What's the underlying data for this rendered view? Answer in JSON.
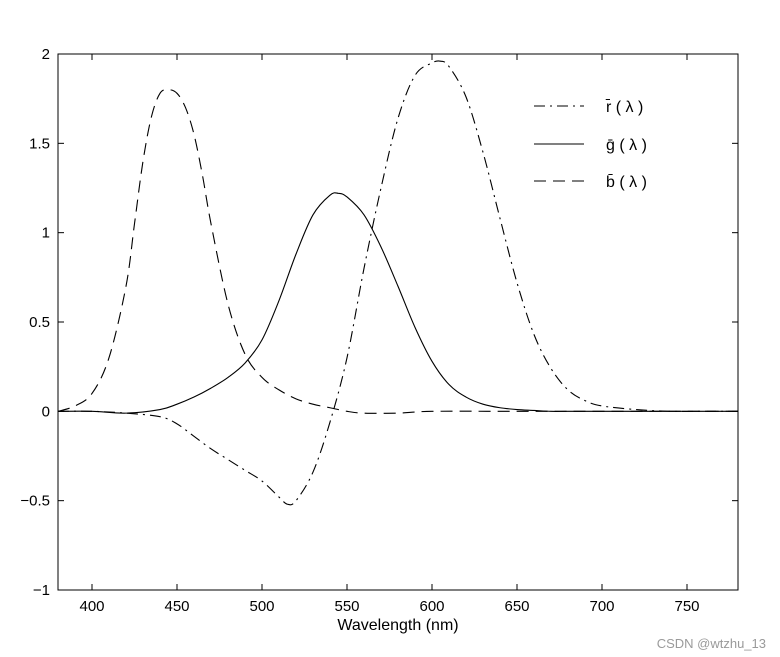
{
  "chart_data": {
    "type": "line",
    "title": "",
    "xlabel": "Wavelength (nm)",
    "ylabel": "",
    "xlim": [
      380,
      780
    ],
    "ylim": [
      -1,
      2
    ],
    "grid": false,
    "legend_position": "top-right",
    "x_ticks": [
      400,
      450,
      500,
      550,
      600,
      650,
      700,
      750
    ],
    "y_ticks": [
      -1,
      -0.5,
      0,
      0.5,
      1,
      1.5,
      2
    ],
    "y_tick_labels": [
      "−1",
      "−0.5",
      "0",
      "0.5",
      "1",
      "1.5",
      "2"
    ],
    "series": [
      {
        "name": "r̄ ( λ )",
        "style": "dashdot",
        "x": [
          380,
          400,
          420,
          440,
          450,
          460,
          470,
          480,
          490,
          500,
          510,
          515,
          520,
          530,
          540,
          550,
          560,
          570,
          580,
          590,
          600,
          605,
          610,
          620,
          630,
          640,
          650,
          660,
          670,
          680,
          690,
          700,
          720,
          740,
          760,
          780
        ],
        "y": [
          0.0,
          0.0,
          -0.01,
          -0.03,
          -0.07,
          -0.14,
          -0.21,
          -0.27,
          -0.33,
          -0.39,
          -0.48,
          -0.52,
          -0.5,
          -0.34,
          -0.06,
          0.3,
          0.8,
          1.25,
          1.64,
          1.88,
          1.95,
          1.96,
          1.93,
          1.76,
          1.45,
          1.08,
          0.72,
          0.43,
          0.24,
          0.12,
          0.06,
          0.03,
          0.01,
          0.0,
          0.0,
          0.0
        ]
      },
      {
        "name": "ḡ ( λ )",
        "style": "solid",
        "x": [
          380,
          400,
          420,
          440,
          450,
          460,
          470,
          480,
          490,
          500,
          510,
          520,
          530,
          540,
          545,
          550,
          560,
          570,
          580,
          590,
          600,
          610,
          620,
          630,
          640,
          650,
          660,
          670,
          680,
          700,
          740,
          780
        ],
        "y": [
          0.0,
          0.0,
          -0.01,
          0.01,
          0.04,
          0.08,
          0.13,
          0.19,
          0.27,
          0.4,
          0.62,
          0.88,
          1.1,
          1.21,
          1.22,
          1.2,
          1.1,
          0.92,
          0.7,
          0.47,
          0.28,
          0.15,
          0.08,
          0.04,
          0.02,
          0.01,
          0.005,
          0.0,
          0.0,
          0.0,
          0.0,
          0.0
        ]
      },
      {
        "name": "b̄ ( λ )",
        "style": "dashed",
        "x": [
          380,
          390,
          400,
          410,
          420,
          425,
          430,
          435,
          440,
          445,
          450,
          455,
          460,
          465,
          470,
          480,
          490,
          500,
          510,
          520,
          530,
          540,
          550,
          560,
          580,
          600,
          650,
          700,
          780
        ],
        "y": [
          0.0,
          0.03,
          0.1,
          0.3,
          0.7,
          1.05,
          1.4,
          1.65,
          1.78,
          1.8,
          1.78,
          1.7,
          1.55,
          1.32,
          1.05,
          0.6,
          0.32,
          0.19,
          0.12,
          0.07,
          0.04,
          0.02,
          0.0,
          -0.01,
          -0.01,
          0.0,
          0.0,
          0.0,
          0.0
        ]
      }
    ]
  },
  "watermark": "CSDN @wtzhu_13"
}
